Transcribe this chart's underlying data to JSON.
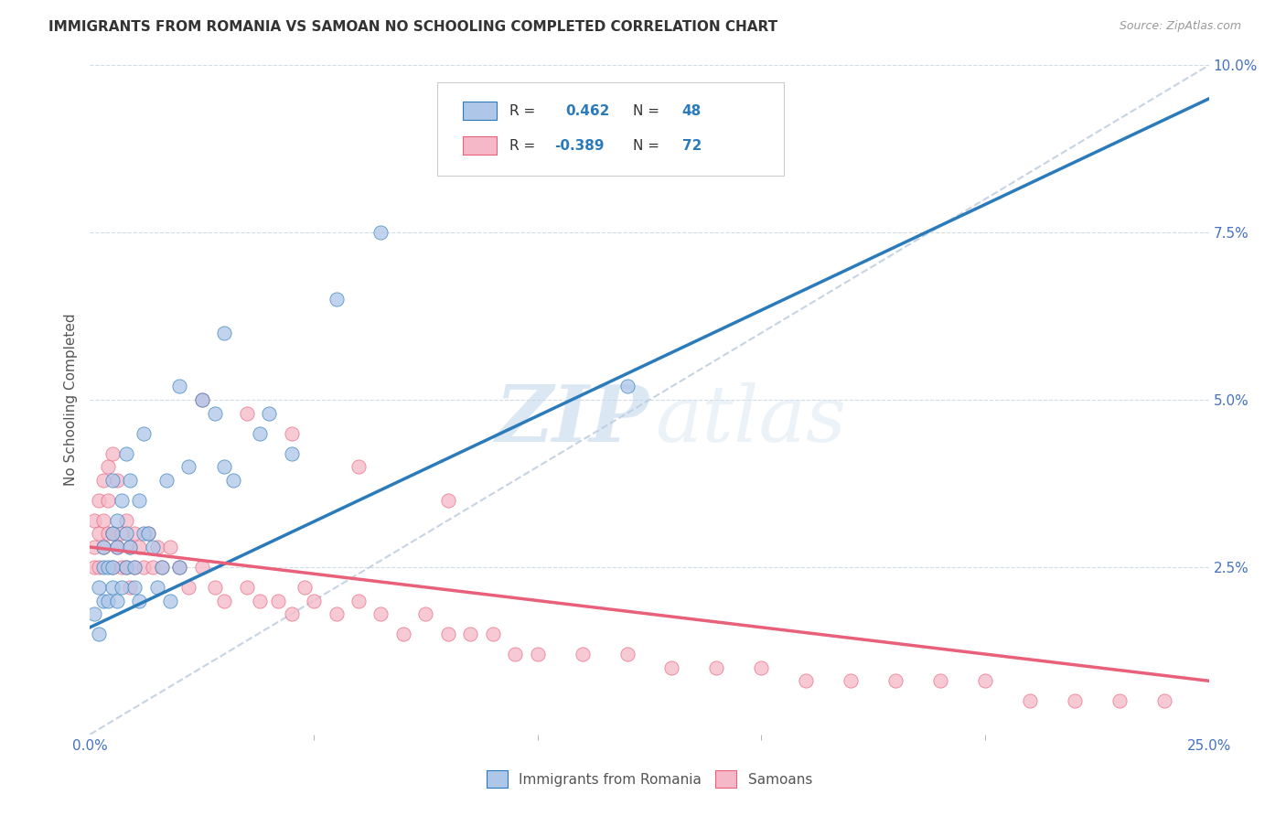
{
  "title": "IMMIGRANTS FROM ROMANIA VS SAMOAN NO SCHOOLING COMPLETED CORRELATION CHART",
  "source": "Source: ZipAtlas.com",
  "ylabel": "No Schooling Completed",
  "x_min": 0.0,
  "x_max": 0.25,
  "y_min": 0.0,
  "y_max": 0.1,
  "x_ticks": [
    0.0,
    0.25
  ],
  "x_tick_labels": [
    "0.0%",
    "25.0%"
  ],
  "y_ticks_right": [
    0.025,
    0.05,
    0.075,
    0.1
  ],
  "y_tick_labels_right": [
    "2.5%",
    "5.0%",
    "7.5%",
    "10.0%"
  ],
  "color_romania": "#aec6e8",
  "color_samoans": "#f5b8c8",
  "line_color_romania": "#2b7bba",
  "line_color_samoans": "#e8607a",
  "dashed_line_color": "#c0cfe0",
  "watermark_zip": "ZIP",
  "watermark_atlas": "atlas",
  "background_color": "#ffffff",
  "romania_scatter_x": [
    0.001,
    0.002,
    0.002,
    0.003,
    0.003,
    0.003,
    0.004,
    0.004,
    0.005,
    0.005,
    0.005,
    0.006,
    0.006,
    0.006,
    0.007,
    0.007,
    0.008,
    0.008,
    0.009,
    0.009,
    0.01,
    0.01,
    0.011,
    0.011,
    0.012,
    0.013,
    0.014,
    0.015,
    0.016,
    0.017,
    0.018,
    0.02,
    0.022,
    0.025,
    0.028,
    0.03,
    0.032,
    0.038,
    0.04,
    0.045,
    0.005,
    0.008,
    0.012,
    0.02,
    0.03,
    0.055,
    0.065,
    0.12
  ],
  "romania_scatter_y": [
    0.018,
    0.022,
    0.015,
    0.025,
    0.028,
    0.02,
    0.02,
    0.025,
    0.025,
    0.022,
    0.03,
    0.032,
    0.028,
    0.02,
    0.035,
    0.022,
    0.03,
    0.025,
    0.038,
    0.028,
    0.022,
    0.025,
    0.035,
    0.02,
    0.03,
    0.03,
    0.028,
    0.022,
    0.025,
    0.038,
    0.02,
    0.025,
    0.04,
    0.05,
    0.048,
    0.04,
    0.038,
    0.045,
    0.048,
    0.042,
    0.038,
    0.042,
    0.045,
    0.052,
    0.06,
    0.065,
    0.075,
    0.052
  ],
  "samoans_scatter_x": [
    0.001,
    0.001,
    0.001,
    0.002,
    0.002,
    0.002,
    0.003,
    0.003,
    0.003,
    0.004,
    0.004,
    0.004,
    0.005,
    0.005,
    0.005,
    0.006,
    0.006,
    0.007,
    0.007,
    0.008,
    0.008,
    0.009,
    0.009,
    0.01,
    0.01,
    0.011,
    0.012,
    0.013,
    0.014,
    0.015,
    0.016,
    0.018,
    0.02,
    0.022,
    0.025,
    0.028,
    0.03,
    0.035,
    0.038,
    0.042,
    0.045,
    0.048,
    0.05,
    0.055,
    0.06,
    0.065,
    0.07,
    0.075,
    0.08,
    0.085,
    0.09,
    0.095,
    0.1,
    0.11,
    0.12,
    0.13,
    0.14,
    0.15,
    0.16,
    0.17,
    0.18,
    0.19,
    0.2,
    0.21,
    0.22,
    0.23,
    0.24,
    0.025,
    0.035,
    0.045,
    0.06,
    0.08
  ],
  "samoans_scatter_y": [
    0.028,
    0.032,
    0.025,
    0.035,
    0.03,
    0.025,
    0.038,
    0.032,
    0.028,
    0.04,
    0.035,
    0.03,
    0.042,
    0.03,
    0.025,
    0.038,
    0.028,
    0.03,
    0.025,
    0.032,
    0.025,
    0.028,
    0.022,
    0.03,
    0.025,
    0.028,
    0.025,
    0.03,
    0.025,
    0.028,
    0.025,
    0.028,
    0.025,
    0.022,
    0.025,
    0.022,
    0.02,
    0.022,
    0.02,
    0.02,
    0.018,
    0.022,
    0.02,
    0.018,
    0.02,
    0.018,
    0.015,
    0.018,
    0.015,
    0.015,
    0.015,
    0.012,
    0.012,
    0.012,
    0.012,
    0.01,
    0.01,
    0.01,
    0.008,
    0.008,
    0.008,
    0.008,
    0.008,
    0.005,
    0.005,
    0.005,
    0.005,
    0.05,
    0.048,
    0.045,
    0.04,
    0.035
  ],
  "romania_line_x0": 0.0,
  "romania_line_y0": 0.016,
  "romania_line_x1": 0.25,
  "romania_line_y1": 0.095,
  "samoans_line_x0": 0.0,
  "samoans_line_y0": 0.028,
  "samoans_line_x1": 0.25,
  "samoans_line_y1": 0.008
}
